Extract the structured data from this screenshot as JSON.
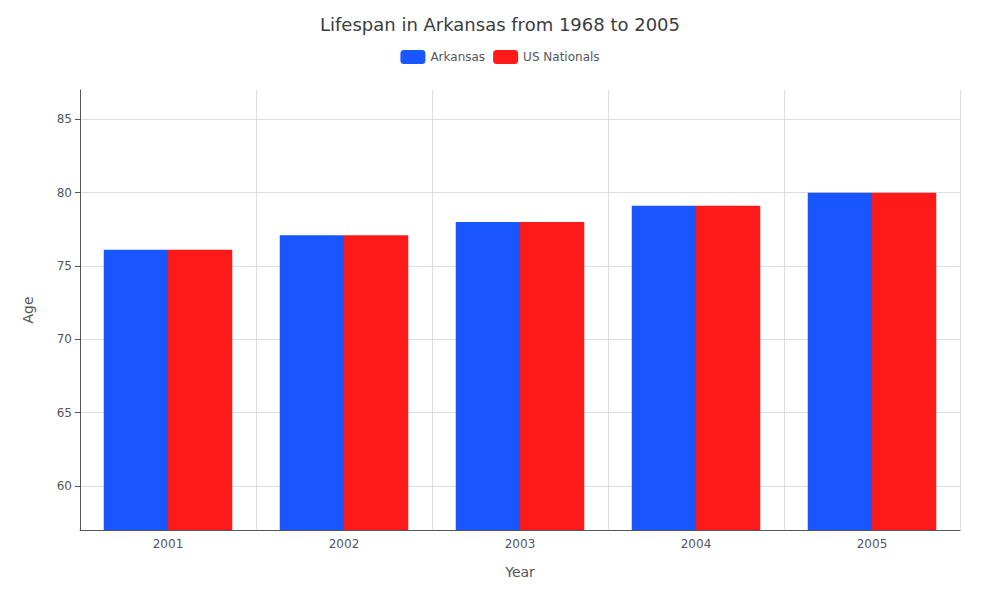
{
  "chart_data": {
    "type": "bar",
    "title": "Lifespan in Arkansas from 1968 to 2005",
    "x_label": "Year",
    "y_label": "Age",
    "categories": [
      "2001",
      "2002",
      "2003",
      "2004",
      "2005"
    ],
    "series": [
      {
        "name": "Arkansas",
        "color": "#1a56ff",
        "values": [
          76.1,
          77.1,
          78.0,
          79.1,
          80.0
        ]
      },
      {
        "name": "US Nationals",
        "color": "#ff1a1a",
        "values": [
          76.1,
          77.1,
          78.0,
          79.1,
          80.0
        ]
      }
    ],
    "ylim": [
      57,
      87
    ],
    "yticks": [
      60,
      65,
      70,
      75,
      80,
      85
    ],
    "grid": true,
    "legend": "top"
  }
}
